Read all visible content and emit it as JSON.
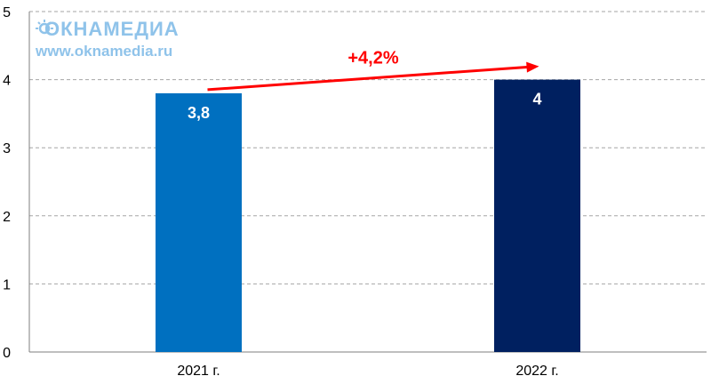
{
  "watermark": {
    "brand": "ОКНАМЕДИА",
    "url": "www.oknamedia.ru"
  },
  "chart_data": {
    "type": "bar",
    "title": "",
    "xlabel": "",
    "ylabel": "",
    "categories": [
      "2021 г.",
      "2022 г."
    ],
    "values": [
      3.8,
      4
    ],
    "value_labels": [
      "3,8",
      "4"
    ],
    "bar_colors": [
      "#0070c0",
      "#002060"
    ],
    "ylim": [
      0,
      5
    ],
    "yticks": [
      0,
      1,
      2,
      3,
      4,
      5
    ],
    "grid": true,
    "annotation": {
      "text": "+4,2%",
      "color": "#ff0000",
      "from": "2021 г.",
      "to": "2022 г."
    }
  }
}
